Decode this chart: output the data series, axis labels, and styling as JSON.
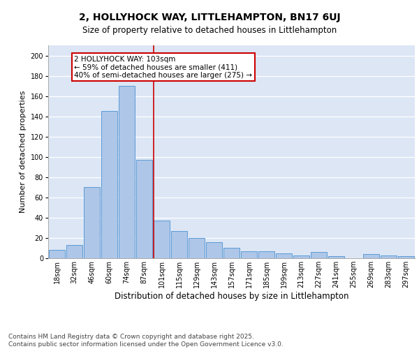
{
  "title1": "2, HOLLYHOCK WAY, LITTLEHAMPTON, BN17 6UJ",
  "title2": "Size of property relative to detached houses in Littlehampton",
  "xlabel": "Distribution of detached houses by size in Littlehampton",
  "ylabel": "Number of detached properties",
  "categories": [
    "18sqm",
    "32sqm",
    "46sqm",
    "60sqm",
    "74sqm",
    "87sqm",
    "101sqm",
    "115sqm",
    "129sqm",
    "143sqm",
    "157sqm",
    "171sqm",
    "185sqm",
    "199sqm",
    "213sqm",
    "227sqm",
    "241sqm",
    "255sqm",
    "269sqm",
    "283sqm",
    "297sqm"
  ],
  "values": [
    8,
    13,
    70,
    145,
    170,
    97,
    37,
    27,
    20,
    16,
    10,
    7,
    7,
    5,
    3,
    6,
    2,
    0,
    4,
    3,
    2
  ],
  "bar_color": "#aec6e8",
  "bar_edge_color": "#5b9bd5",
  "bg_color": "#dce6f5",
  "grid_color": "#ffffff",
  "annotation_text": "2 HOLLYHOCK WAY: 103sqm\n← 59% of detached houses are smaller (411)\n40% of semi-detached houses are larger (275) →",
  "annotation_box_color": "#ffffff",
  "annotation_box_edge": "#cc0000",
  "vline_color": "#cc0000",
  "ylim": [
    0,
    210
  ],
  "yticks": [
    0,
    20,
    40,
    60,
    80,
    100,
    120,
    140,
    160,
    180,
    200
  ],
  "footnote": "Contains HM Land Registry data © Crown copyright and database right 2025.\nContains public sector information licensed under the Open Government Licence v3.0.",
  "title1_fontsize": 10,
  "title2_fontsize": 8.5,
  "xlabel_fontsize": 8.5,
  "ylabel_fontsize": 8,
  "tick_fontsize": 7,
  "annot_fontsize": 7.5,
  "footnote_fontsize": 6.5
}
